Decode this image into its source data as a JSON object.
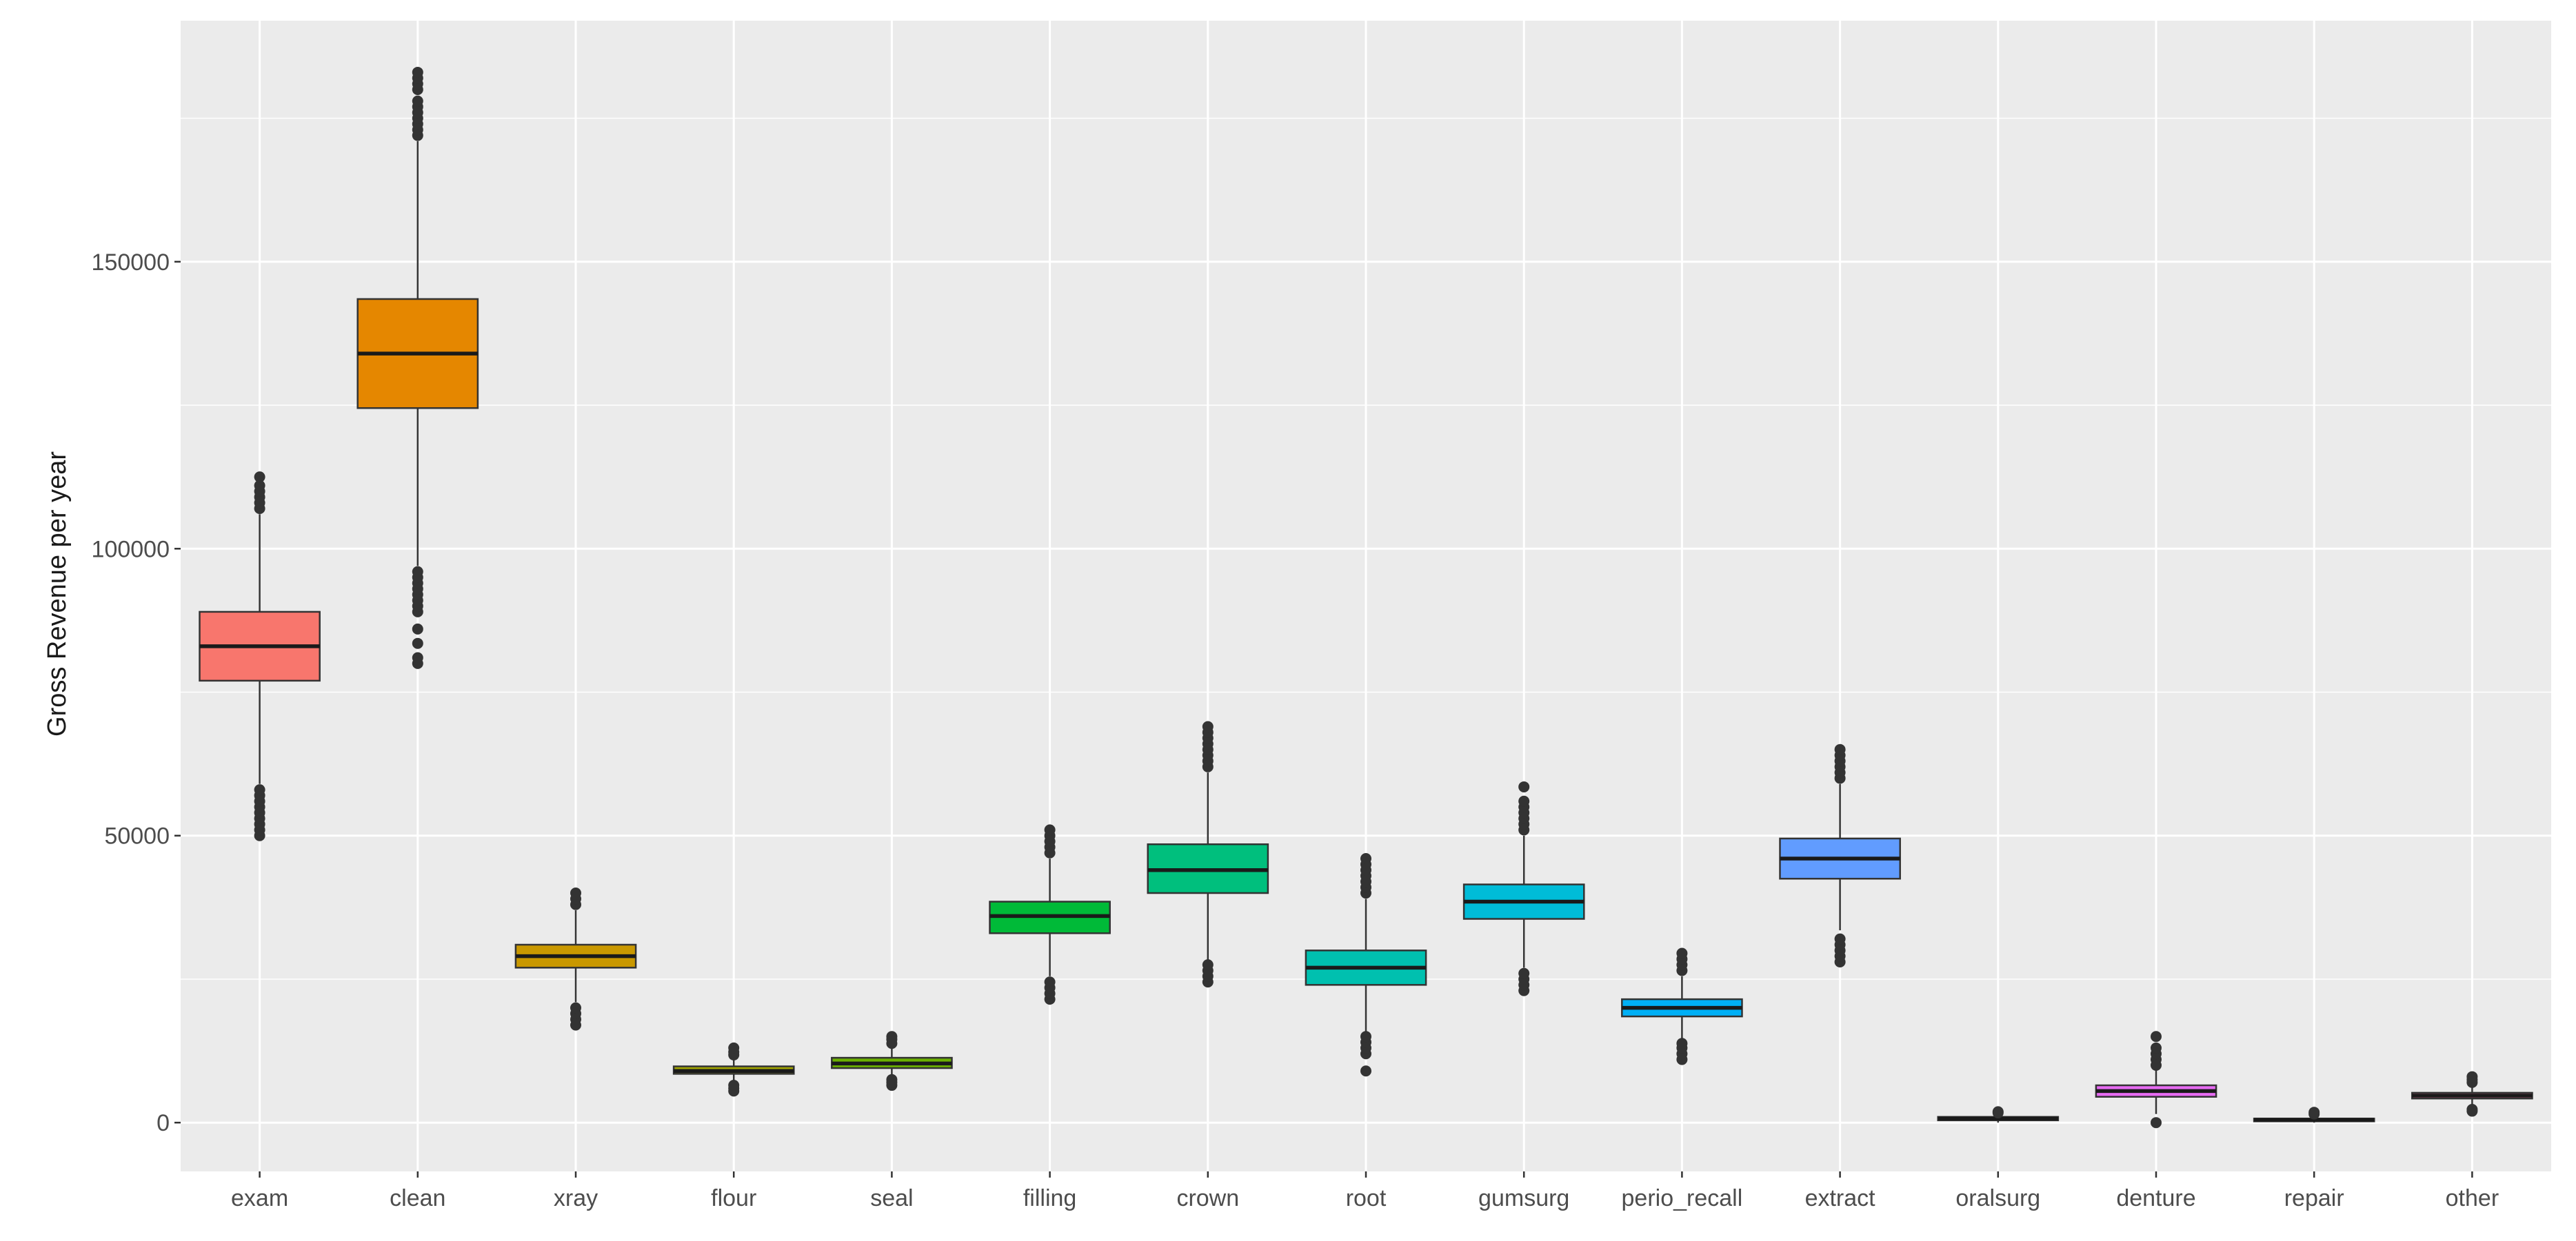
{
  "chart_data": {
    "type": "boxplot",
    "xlabel": "",
    "ylabel": "Gross Revenue per year",
    "ylim": [
      -8500,
      192000
    ],
    "yticks": [
      0,
      50000,
      100000,
      150000
    ],
    "ytick_labels": [
      "0",
      "50000",
      "100000",
      "150000"
    ],
    "grid": true,
    "legend": "none",
    "categories": [
      "exam",
      "clean",
      "xray",
      "flour",
      "seal",
      "filling",
      "crown",
      "root",
      "gumsurg",
      "perio_recall",
      "extract",
      "oralsurg",
      "denture",
      "repair",
      "other"
    ],
    "boxes": [
      {
        "category": "exam",
        "color": "#F8766D",
        "q1": 77000,
        "median": 83000,
        "q3": 89000,
        "whisker_low": 59000,
        "whisker_high": 106000,
        "outliers": [
          50000,
          51000,
          52000,
          53000,
          54000,
          55000,
          56000,
          57000,
          58000,
          107000,
          108000,
          109000,
          110000,
          111000,
          112500
        ]
      },
      {
        "category": "clean",
        "color": "#E58700",
        "q1": 124500,
        "median": 134000,
        "q3": 143500,
        "whisker_low": 97000,
        "whisker_high": 171000,
        "outliers": [
          80000,
          81000,
          83500,
          86000,
          89000,
          90000,
          91000,
          92000,
          93000,
          94000,
          95000,
          96000,
          172000,
          173000,
          174000,
          175000,
          176000,
          177000,
          178000,
          180000,
          181000,
          182000,
          183000
        ]
      },
      {
        "category": "xray",
        "color": "#C99800",
        "q1": 27000,
        "median": 29000,
        "q3": 31000,
        "whisker_low": 21000,
        "whisker_high": 37000,
        "outliers": [
          17000,
          18000,
          19000,
          20000,
          38000,
          39000,
          40000
        ]
      },
      {
        "category": "flour",
        "color": "#A3A500",
        "q1": 8500,
        "median": 9000,
        "q3": 9800,
        "whisker_low": 7000,
        "whisker_high": 11000,
        "outliers": [
          5500,
          6000,
          6500,
          11800,
          12300,
          13000
        ]
      },
      {
        "category": "seal",
        "color": "#6BB100",
        "q1": 9500,
        "median": 10300,
        "q3": 11300,
        "whisker_low": 8000,
        "whisker_high": 13000,
        "outliers": [
          6500,
          7000,
          7500,
          13800,
          14500,
          15000
        ]
      },
      {
        "category": "filling",
        "color": "#00BA38",
        "q1": 33000,
        "median": 36000,
        "q3": 38500,
        "whisker_low": 25500,
        "whisker_high": 46000,
        "outliers": [
          21500,
          22500,
          23500,
          24500,
          47000,
          48000,
          49000,
          50000,
          51000
        ]
      },
      {
        "category": "crown",
        "color": "#00BF7D",
        "q1": 40000,
        "median": 44000,
        "q3": 48500,
        "whisker_low": 28000,
        "whisker_high": 61000,
        "outliers": [
          24500,
          25500,
          26500,
          27500,
          62000,
          63000,
          64000,
          65000,
          66000,
          67000,
          68000,
          69000
        ]
      },
      {
        "category": "root",
        "color": "#00C0AF",
        "q1": 24000,
        "median": 27000,
        "q3": 30000,
        "whisker_low": 15500,
        "whisker_high": 39000,
        "outliers": [
          9000,
          12000,
          13000,
          14000,
          15000,
          40000,
          41000,
          42000,
          43000,
          44000,
          45000,
          46000
        ]
      },
      {
        "category": "gumsurg",
        "color": "#00BCD8",
        "q1": 35500,
        "median": 38500,
        "q3": 41500,
        "whisker_low": 27000,
        "whisker_high": 50000,
        "outliers": [
          23000,
          24000,
          25000,
          26000,
          51000,
          52000,
          53000,
          54000,
          55000,
          56000,
          58500
        ]
      },
      {
        "category": "perio_recall",
        "color": "#00B0F6",
        "q1": 18500,
        "median": 20000,
        "q3": 21500,
        "whisker_low": 14500,
        "whisker_high": 25500,
        "outliers": [
          11000,
          12000,
          13000,
          13800,
          26500,
          27500,
          28500,
          29500
        ]
      },
      {
        "category": "extract",
        "color": "#619CFF",
        "q1": 42500,
        "median": 46000,
        "q3": 49500,
        "whisker_low": 33500,
        "whisker_high": 59000,
        "outliers": [
          28000,
          29000,
          30000,
          31000,
          32000,
          60000,
          61000,
          62000,
          63000,
          64000,
          65000
        ]
      },
      {
        "category": "oralsurg",
        "color": "#B983FF",
        "q1": 400,
        "median": 700,
        "q3": 1000,
        "whisker_low": 0,
        "whisker_high": 1500,
        "outliers": [
          1700,
          1900
        ]
      },
      {
        "category": "denture",
        "color": "#E76BF3",
        "q1": 4500,
        "median": 5500,
        "q3": 6500,
        "whisker_low": 1500,
        "whisker_high": 9500,
        "outliers": [
          0,
          10000,
          11000,
          12000,
          13000,
          15000
        ]
      },
      {
        "category": "repair",
        "color": "#FD61D1",
        "q1": 300,
        "median": 500,
        "q3": 700,
        "whisker_low": 0,
        "whisker_high": 1200,
        "outliers": [
          1500,
          1800
        ]
      },
      {
        "category": "other",
        "color": "#FF67A4",
        "q1": 4200,
        "median": 4700,
        "q3": 5200,
        "whisker_low": 3000,
        "whisker_high": 6500,
        "outliers": [
          2000,
          2300,
          7000,
          7500,
          8000
        ]
      }
    ]
  },
  "colors": {
    "panel_background": "#EBEBEB",
    "grid_major": "#FFFFFF",
    "axis_text": "#4D4D4D",
    "box_outline": "#333333",
    "outlier": "#333333"
  }
}
